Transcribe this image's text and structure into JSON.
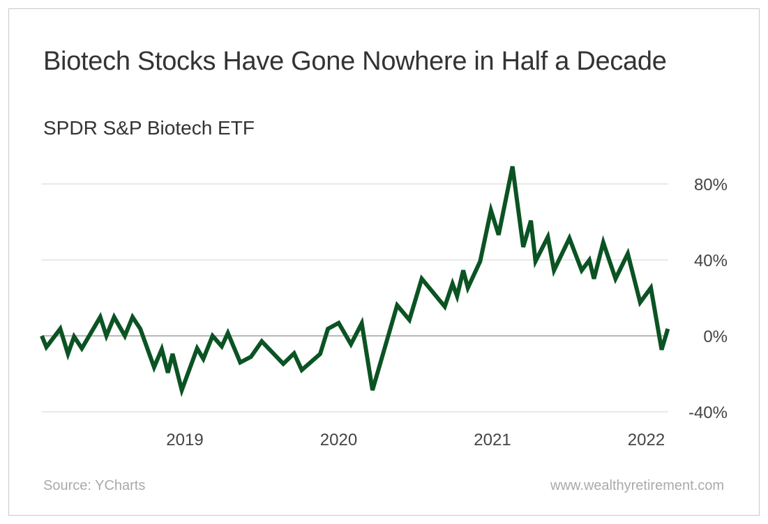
{
  "title": "Biotech Stocks Have Gone Nowhere in Half a Decade",
  "subtitle": "SPDR S&P Biotech ETF",
  "source": "Source: YCharts",
  "website": "www.wealthyretirement.com",
  "chart_data": {
    "type": "line",
    "title": "Biotech Stocks Have Gone Nowhere in Half a Decade",
    "subtitle": "SPDR S&P Biotech ETF",
    "xlabel": "",
    "ylabel": "",
    "x_ticks": [
      {
        "value": 2019,
        "label": "2019"
      },
      {
        "value": 2020,
        "label": "2020"
      },
      {
        "value": 2021,
        "label": "2021"
      },
      {
        "value": 2022,
        "label": "2022"
      }
    ],
    "y_ticks": [
      {
        "value": 80,
        "label": "80%"
      },
      {
        "value": 40,
        "label": "40%"
      },
      {
        "value": 0,
        "label": "0%"
      },
      {
        "value": -40,
        "label": "-40%"
      }
    ],
    "xlim": [
      2018.07,
      2022.14
    ],
    "ylim": [
      -40,
      90
    ],
    "grid": "horizontal",
    "y_axis_side": "right",
    "colors": {
      "line": "#0b5323",
      "grid": "#d0d0d0",
      "zero_line": "#a0a0a0"
    },
    "series": [
      {
        "x": [
          2018.07,
          2018.1,
          2018.19,
          2018.24,
          2018.28,
          2018.33,
          2018.45,
          2018.49,
          2018.54,
          2018.61,
          2018.66,
          2018.71,
          2018.8,
          2018.85,
          2018.89,
          2018.92,
          2018.98,
          2019.08,
          2019.12,
          2019.18,
          2019.24,
          2019.28,
          2019.36,
          2019.43,
          2019.5,
          2019.64,
          2019.71,
          2019.76,
          2019.88,
          2019.93,
          2020.0,
          2020.08,
          2020.15,
          2020.22,
          2020.38,
          2020.46,
          2020.54,
          2020.69,
          2020.74,
          2020.77,
          2020.81,
          2020.84,
          2020.92,
          2020.99,
          2021.04,
          2021.13,
          2021.2,
          2021.25,
          2021.28,
          2021.36,
          2021.4,
          2021.5,
          2021.58,
          2021.63,
          2021.66,
          2021.72,
          2021.8,
          2021.88,
          2021.96,
          2022.03,
          2022.1,
          2022.14
        ],
        "y": [
          0,
          -5.9,
          3.7,
          -9.5,
          -0.4,
          -6.6,
          9.9,
          0,
          9.9,
          0,
          9.9,
          3.7,
          -16.5,
          -7.0,
          -19.4,
          -9.5,
          -28.6,
          -6.6,
          -12.1,
          0,
          -5.5,
          1.5,
          -14.0,
          -11.0,
          -2.9,
          -14.7,
          -9.2,
          -18.0,
          -9.5,
          3.7,
          6.8,
          -4.4,
          6.6,
          -28.6,
          16.1,
          8.4,
          30.1,
          15.4,
          27.5,
          20.9,
          34.5,
          25.3,
          39.3,
          66.1,
          53.2,
          89.2,
          46.8,
          60.7,
          39.3,
          52.1,
          34.5,
          51.4,
          34.5,
          39.9,
          30.1,
          49.2,
          30.1,
          43.3,
          17.6,
          25.3,
          -7.3,
          3.7
        ]
      }
    ]
  }
}
